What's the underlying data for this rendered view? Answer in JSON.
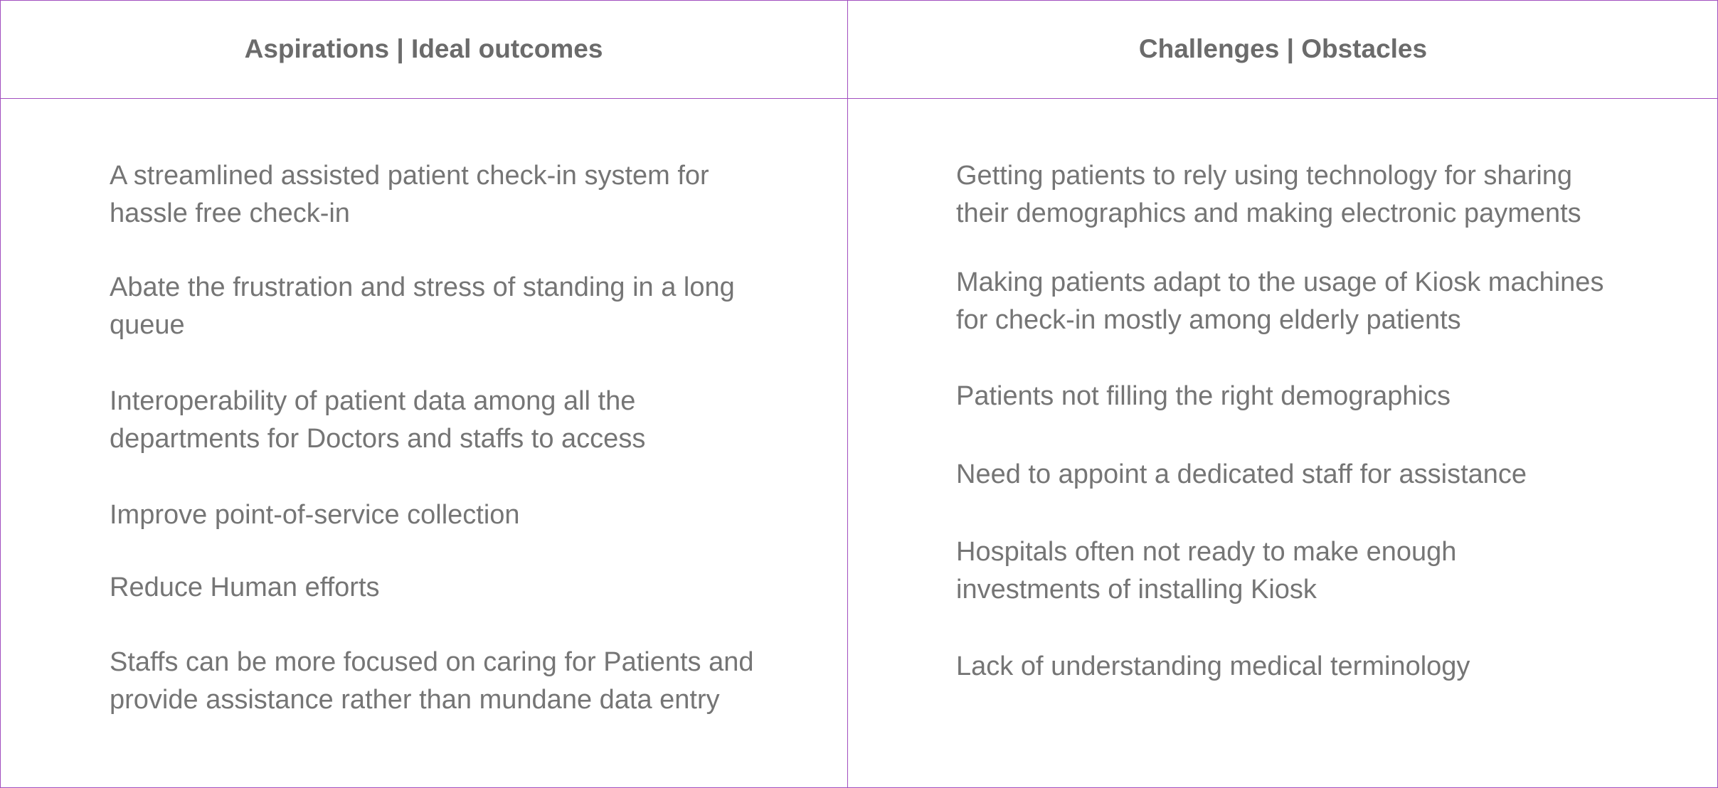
{
  "columns": {
    "left": {
      "header": "Aspirations | Ideal outcomes",
      "items": [
        [
          "A streamlined assisted patient check-in system for",
          "hassle free check-in"
        ],
        [
          "Abate the frustration and stress of standing in a long",
          "queue"
        ],
        [
          "Interoperability of patient data among all the",
          "departments for Doctors and staffs to access"
        ],
        [
          "Improve point-of-service collection"
        ],
        [
          "Reduce Human efforts"
        ],
        [
          "Staffs can be more focused on caring for Patients and",
          "provide assistance rather than mundane data entry"
        ]
      ]
    },
    "right": {
      "header": "Challenges | Obstacles",
      "items": [
        [
          "Getting patients to rely using technology for sharing",
          "their demographics and making electronic payments"
        ],
        [
          "Making patients adapt to the usage of Kiosk machines",
          "for check-in mostly among elderly patients"
        ],
        [
          "Patients not filling the right demographics"
        ],
        [
          "Need to appoint a dedicated staff for assistance"
        ],
        [
          "Hospitals often not ready to make enough",
          "investments of installing Kiosk"
        ],
        [
          "Lack of understanding medical terminology"
        ]
      ]
    }
  },
  "colors": {
    "border": "#a24fbf",
    "text": "#757575",
    "header_text": "#6b6b6b"
  }
}
